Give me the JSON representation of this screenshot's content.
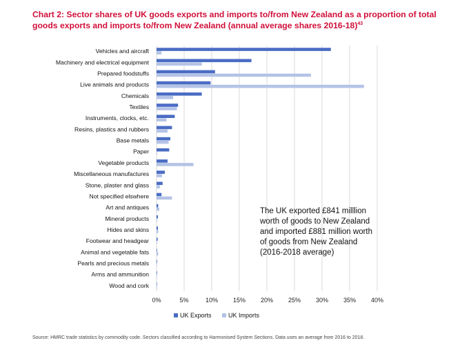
{
  "header": {
    "title": "Chart 2: Sector shares of UK goods exports and imports to/from New Zealand as a proportion of total goods exports and imports to/from New Zealand (annual average shares 2016-18)",
    "footnote_ref": "43"
  },
  "annotation": "The UK exported £841 milllion worth of goods to New Zealand and imported £881 million worth of goods from New Zealand (2016-2018 average)",
  "source": "Source: HMRC trade statistics by commodity code. Sectors classified according to Harmonised System Sections. Data uses an average from 2016 to 2018.",
  "colors": {
    "exports": "#4a6cc4",
    "imports": "#b4c3e6",
    "grid": "#d9d9d9"
  },
  "chart_data": {
    "type": "bar",
    "orientation": "horizontal",
    "categories": [
      "Vehicles and aircraft",
      "Machinery and electrical equipment",
      "Prepared foodstuffs",
      "Live animals and products",
      "Chemicals",
      "Textiles",
      "Instruments, clocks, etc.",
      "Resins, plastics and rubbers",
      "Base metals",
      "Paper",
      "Vegetable products",
      "Miscellaneous manufactures",
      "Stone, plaster and glass",
      "Not specified elswhere",
      "Art and antiques",
      "Mineral products",
      "Hides and skins",
      "Footwear and headgear",
      "Animal and vegetable fats",
      "Pearls and precious metals",
      "Arms and ammunition",
      "Wood and cork"
    ],
    "series": [
      {
        "name": "UK Exports",
        "values": [
          31.6,
          17.2,
          10.6,
          9.8,
          8.2,
          3.9,
          3.3,
          2.8,
          2.5,
          2.3,
          2.0,
          1.5,
          1.1,
          0.9,
          0.3,
          0.25,
          0.25,
          0.2,
          0.1,
          0.1,
          0.1,
          0.05
        ]
      },
      {
        "name": "UK Imports",
        "values": [
          0.9,
          8.2,
          28.0,
          37.6,
          3.0,
          3.7,
          1.8,
          2.0,
          2.2,
          0.1,
          6.7,
          1.0,
          0.6,
          2.8,
          0.5,
          0.1,
          0.3,
          0.1,
          0.3,
          0.05,
          0.05,
          0.1
        ]
      }
    ],
    "xlim": [
      0,
      40
    ],
    "xticks": [
      "0%",
      "5%",
      "10%",
      "15%",
      "20%",
      "25%",
      "30%",
      "35%",
      "40%"
    ],
    "xlabel": "",
    "ylabel": "",
    "grid": true,
    "legend": [
      "UK Exports",
      "UK Imports"
    ],
    "legend_position": "bottom"
  }
}
